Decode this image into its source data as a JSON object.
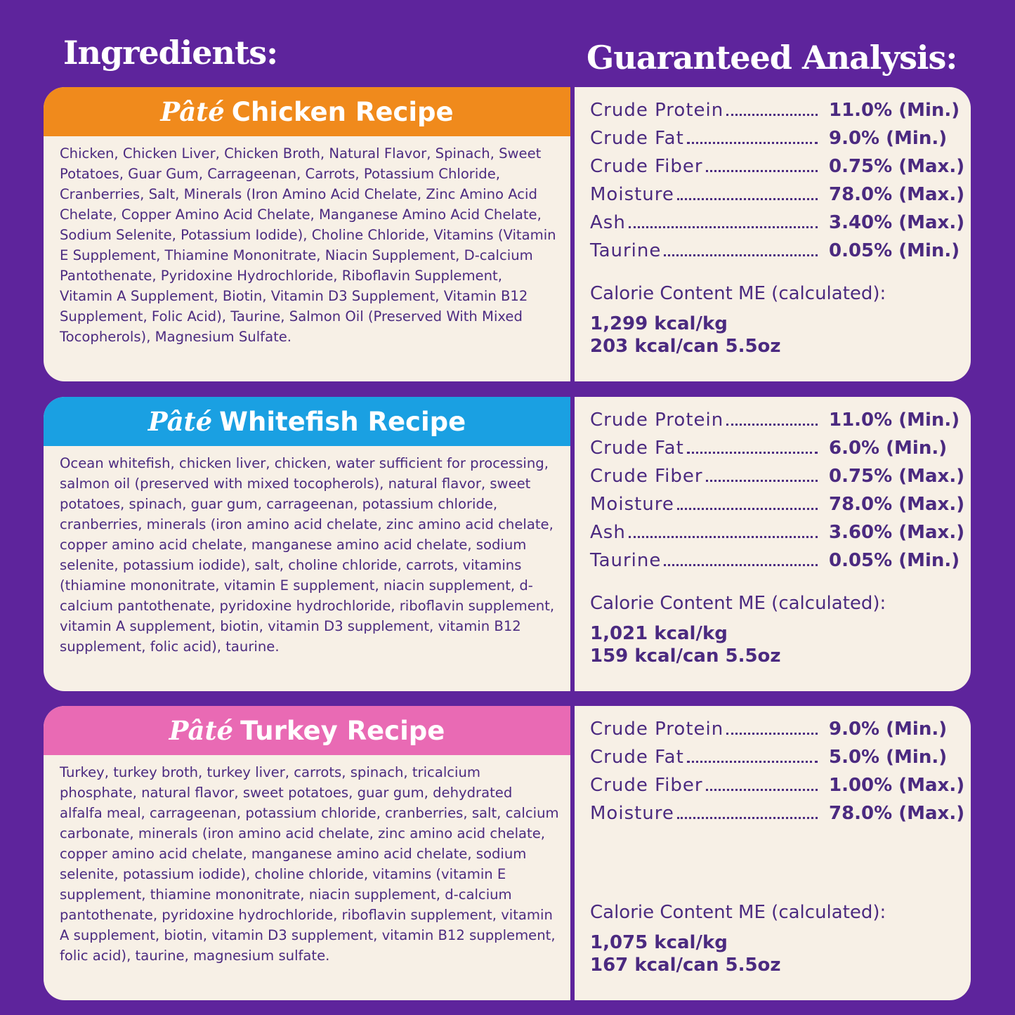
{
  "header": {
    "ingredients_title": "Ingredients:",
    "analysis_title": "Guaranteed Analysis:"
  },
  "recipes": [
    {
      "prefix": "Pâté",
      "name": "Chicken Recipe",
      "ingredients": "Chicken, Chicken Liver, Chicken Broth, Natural Flavor, Spinach, Sweet Potatoes, Guar Gum, Carrageenan, Carrots, Potassium Chloride, Cranberries, Salt, Minerals (Iron Amino Acid Chelate, Zinc Amino Acid Chelate, Copper Amino Acid Chelate, Manganese Amino Acid Chelate, Sodium Selenite, Potassium Iodide), Choline Chloride, Vitamins (Vitamin E Supplement, Thiamine Mononitrate, Niacin Supplement, D-calcium Pantothenate, Pyridoxine Hydrochloride, Riboflavin Supplement, Vitamin A Supplement, Biotin, Vitamin D3 Supplement, Vitamin B12 Supplement, Folic Acid), Taurine, Salmon Oil (Preserved With Mixed Tocopherols), Magnesium Sulfate.",
      "analysis": [
        [
          "Crude Protein",
          "11.0% (Min.)"
        ],
        [
          "Crude Fat",
          "9.0% (Min.)"
        ],
        [
          "Crude Fiber",
          "0.75% (Max.)"
        ],
        [
          "Moisture",
          "78.0% (Max.)"
        ],
        [
          "Ash",
          "3.40% (Max.)"
        ],
        [
          "Taurine",
          "0.05% (Min.)"
        ]
      ],
      "calorie_title": "Calorie Content ME (calculated):",
      "calories": [
        "1,299 kcal/kg",
        "203 kcal/can 5.5oz"
      ]
    },
    {
      "prefix": "Pâté",
      "name": "Whitefish Recipe",
      "ingredients": "Ocean whitefish, chicken liver, chicken, water sufficient for processing, salmon oil (preserved with mixed tocopherols), natural flavor, sweet potatoes, spinach, guar gum, carrageenan, potassium chloride, cranberries, minerals (iron amino acid chelate, zinc amino acid chelate, copper amino acid chelate, manganese amino acid chelate, sodium selenite, potassium iodide), salt, choline chloride, carrots, vitamins (thiamine mononitrate, vitamin E supplement, niacin supplement, d-calcium pantothenate, pyridoxine hydrochloride, riboflavin supplement, vitamin A supplement, biotin, vitamin D3 supplement, vitamin B12 supplement, folic acid), taurine.",
      "analysis": [
        [
          "Crude Protein",
          "11.0% (Min.)"
        ],
        [
          "Crude Fat",
          "6.0% (Min.)"
        ],
        [
          "Crude Fiber",
          "0.75% (Max.)"
        ],
        [
          "Moisture",
          "78.0% (Max.)"
        ],
        [
          "Ash",
          "3.60% (Max.)"
        ],
        [
          "Taurine",
          "0.05% (Min.)"
        ]
      ],
      "calorie_title": "Calorie Content ME (calculated):",
      "calories": [
        "1,021 kcal/kg",
        "159 kcal/can 5.5oz"
      ]
    },
    {
      "prefix": "Pâté",
      "name": "Turkey Recipe",
      "ingredients": "Turkey, turkey broth, turkey liver, carrots, spinach, tricalcium phosphate, natural flavor, sweet potatoes, guar gum, dehydrated alfalfa meal, carrageenan, potassium chloride, cranberries, salt, calcium carbonate, minerals (iron amino acid chelate, zinc amino acid chelate, copper amino acid chelate, manganese amino acid chelate, sodium selenite, potassium iodide), choline chloride, vitamins (vitamin E supplement, thiamine mononitrate, niacin supplement, d-calcium pantothenate, pyridoxine hydrochloride, riboflavin supplement, vitamin A supplement, biotin, vitamin D3 supplement, vitamin B12 supplement, folic acid), taurine, magnesium sulfate.",
      "analysis": [
        [
          "Crude Protein",
          "9.0% (Min.)"
        ],
        [
          "Crude Fat",
          "5.0% (Min.)"
        ],
        [
          "Crude Fiber",
          "1.00% (Max.)"
        ],
        [
          "Moisture",
          "78.0% (Max.)"
        ]
      ],
      "calorie_title": "Calorie Content ME (calculated):",
      "calories": [
        "1,075 kcal/kg",
        "167 kcal/can 5.5oz"
      ]
    }
  ]
}
